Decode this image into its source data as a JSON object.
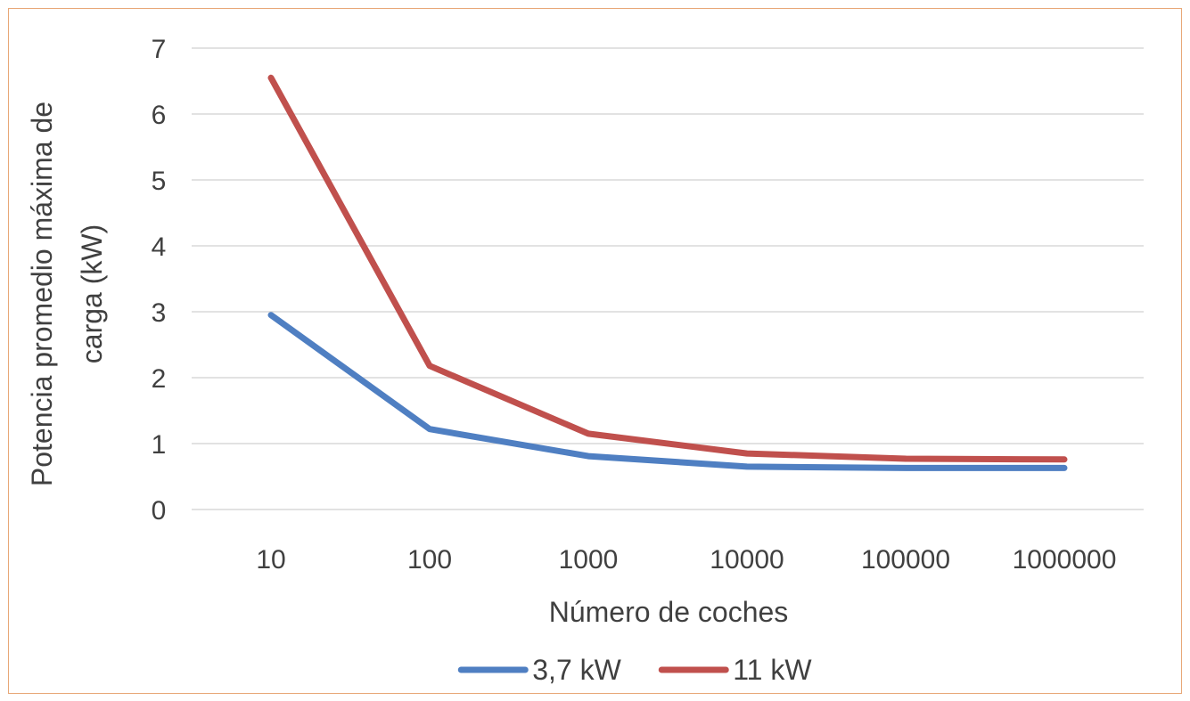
{
  "chart_data": {
    "type": "line",
    "x_scale": "category",
    "categories": [
      "10",
      "100",
      "1000",
      "10000",
      "100000",
      "1000000"
    ],
    "series": [
      {
        "name": "3,7 kW",
        "color": "#4f7fc2",
        "values": [
          2.95,
          1.22,
          0.81,
          0.65,
          0.63,
          0.63
        ]
      },
      {
        "name": "11 kW",
        "color": "#c0504d",
        "values": [
          6.55,
          2.18,
          1.15,
          0.85,
          0.77,
          0.76
        ]
      }
    ],
    "title": "",
    "xlabel": "Número de coches",
    "ylabel_lines": [
      "Potencia promedio máxima de",
      "carga (kW)"
    ],
    "ylim": [
      0,
      7
    ],
    "yticks": [
      "0",
      "1",
      "2",
      "3",
      "4",
      "5",
      "6",
      "7"
    ],
    "grid": true,
    "grid_color": "#d9d9d9",
    "legend_position": "bottom"
  }
}
